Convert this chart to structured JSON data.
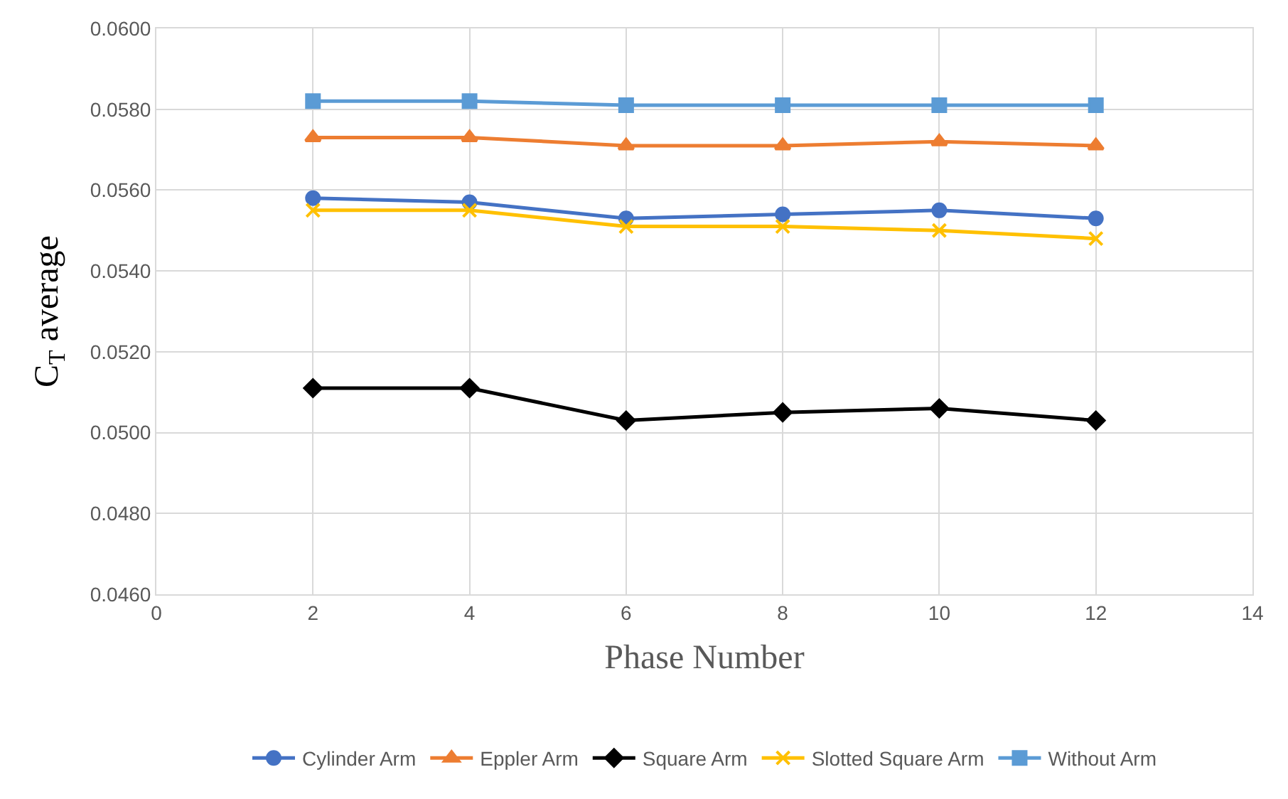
{
  "chart_data": {
    "type": "line",
    "xlabel": "Phase Number",
    "ylabel": "C$_{T}$ average",
    "x": [
      2,
      4,
      6,
      8,
      10,
      12
    ],
    "series": [
      {
        "name": "Cylinder Arm",
        "color": "#4472c4",
        "marker": "circle",
        "values": [
          0.0558,
          0.0557,
          0.0553,
          0.0554,
          0.0555,
          0.0553
        ]
      },
      {
        "name": "Eppler Arm",
        "color": "#ed7d31",
        "marker": "triangle",
        "values": [
          0.0573,
          0.0573,
          0.0571,
          0.0571,
          0.0572,
          0.0571
        ]
      },
      {
        "name": "Square Arm",
        "color": "#000000",
        "marker": "diamond",
        "values": [
          0.0511,
          0.0511,
          0.0503,
          0.0505,
          0.0506,
          0.0503
        ]
      },
      {
        "name": "Slotted Square Arm",
        "color": "#ffc000",
        "marker": "cross",
        "values": [
          0.0555,
          0.0555,
          0.0551,
          0.0551,
          0.055,
          0.0548
        ]
      },
      {
        "name": "Without Arm",
        "color": "#5b9bd5",
        "marker": "square",
        "values": [
          0.0582,
          0.0582,
          0.0581,
          0.0581,
          0.0581,
          0.0581
        ]
      }
    ],
    "xlim": [
      0,
      14
    ],
    "xticks": [
      0,
      2,
      4,
      6,
      8,
      10,
      12,
      14
    ],
    "ylim": [
      0.046,
      0.06
    ],
    "yticks": [
      {
        "value": 0.046,
        "label": "0.0460"
      },
      {
        "value": 0.048,
        "label": "0.0480"
      },
      {
        "value": 0.05,
        "label": "0.0500"
      },
      {
        "value": 0.052,
        "label": "0.0520"
      },
      {
        "value": 0.054,
        "label": "0.0540"
      },
      {
        "value": 0.056,
        "label": "0.0560"
      },
      {
        "value": 0.058,
        "label": "0.0580"
      },
      {
        "value": 0.06,
        "label": "0.0600"
      }
    ],
    "grid": true,
    "legend": "bottom"
  }
}
